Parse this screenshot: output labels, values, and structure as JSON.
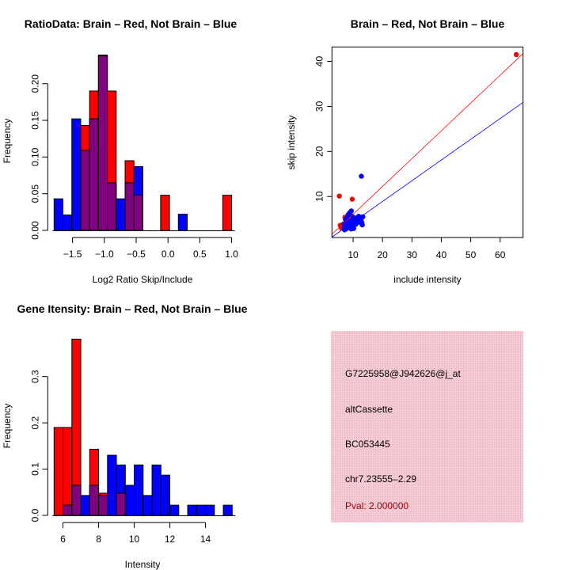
{
  "colors": {
    "brain": "#ff0000",
    "not_brain": "#0000ff",
    "overlap": "#800080",
    "info_bg": "#f2c4cf",
    "pval": "#990000"
  },
  "chart_data": [
    {
      "type": "bar",
      "title": "RatioData: Brain – Red, Not Brain – Blue",
      "xlabel": "Log2 Ratio Skip/Include",
      "ylabel": "Frequency",
      "bin_start": -1.79,
      "bin_width": 0.1395,
      "xticks": [
        -1.5,
        -1.0,
        -0.5,
        0.0,
        0.5,
        1.0
      ],
      "xtick_labels": [
        "−1.5",
        "−1.0",
        "−0.5",
        "0.0",
        "0.5",
        "1.0"
      ],
      "yticks": [
        0,
        0.05,
        0.1,
        0.15,
        0.2
      ],
      "ytick_labels": [
        "0.00",
        "0.05",
        "0.10",
        "0.15",
        "0.20"
      ],
      "series": [
        {
          "name": "Brain",
          "color": "red",
          "values": [
            0,
            0,
            0,
            0.143,
            0.19,
            0.238,
            0.19,
            0,
            0.095,
            0.048,
            0,
            0,
            0.048,
            0,
            0,
            0,
            0,
            0,
            0,
            0.048
          ]
        },
        {
          "name": "Not Brain",
          "color": "blue",
          "values": [
            0.043,
            0.021,
            0.152,
            0.109,
            0.152,
            0.239,
            0.065,
            0.043,
            0.065,
            0.087,
            0,
            0,
            0,
            0,
            0.022,
            0,
            0,
            0,
            0,
            0
          ]
        }
      ]
    },
    {
      "type": "scatter",
      "title": "Brain – Red, Not Brain – Blue",
      "xlabel": "include intensity",
      "ylabel": "skip intensity",
      "xlim": [
        2.8,
        67.8
      ],
      "ylim": [
        0.9,
        43.2
      ],
      "xticks": [
        10,
        20,
        30,
        40,
        50,
        60
      ],
      "yticks": [
        10,
        20,
        30,
        40
      ],
      "lines": [
        {
          "name": "Brain fit",
          "color": "red",
          "slope": 0.617,
          "intercept": -0.1
        },
        {
          "name": "Not Brain fit",
          "color": "blue",
          "slope": 0.46,
          "intercept": -0.3
        }
      ],
      "series": [
        {
          "name": "Brain",
          "color": "red",
          "points": [
            [
              65.5,
              41.5
            ],
            [
              5.3,
              10.1
            ],
            [
              9.7,
              9.4
            ],
            [
              5.6,
              3.6
            ],
            [
              6.0,
              3.0
            ],
            [
              6.4,
              3.3
            ],
            [
              7.8,
              3.4
            ],
            [
              8.2,
              5.0
            ],
            [
              7.2,
              5.4
            ]
          ]
        },
        {
          "name": "Not Brain",
          "color": "blue",
          "points": [
            [
              12.8,
              14.5
            ],
            [
              7,
              3
            ],
            [
              7.3,
              3.6
            ],
            [
              7.5,
              4.2
            ],
            [
              7.8,
              4.8
            ],
            [
              8,
              5.4
            ],
            [
              8.3,
              5.9
            ],
            [
              8.6,
              6.2
            ],
            [
              9,
              6.5
            ],
            [
              9.4,
              6.8
            ],
            [
              7.1,
              2.6
            ],
            [
              7.6,
              2.8
            ],
            [
              8.1,
              3.1
            ],
            [
              8.5,
              3.4
            ],
            [
              8.9,
              3.8
            ],
            [
              9.2,
              4.1
            ],
            [
              9.6,
              4.4
            ],
            [
              9.9,
              3.2
            ],
            [
              10.2,
              2.9
            ],
            [
              10.5,
              3.7
            ],
            [
              10.8,
              4.3
            ],
            [
              11.2,
              4.9
            ],
            [
              11.5,
              5.4
            ],
            [
              11.9,
              5.6
            ],
            [
              12.3,
              5.3
            ],
            [
              12.7,
              4.8
            ],
            [
              13,
              4.2
            ],
            [
              13.1,
              3.7
            ],
            [
              13.3,
              5.5
            ],
            [
              10,
              5
            ],
            [
              9.7,
              5.6
            ],
            [
              8.8,
              4.6
            ],
            [
              11,
              3.9
            ],
            [
              12,
              4.3
            ],
            [
              6.8,
              3.9
            ],
            [
              7.4,
              4.9
            ],
            [
              9.3,
              2.8
            ],
            [
              10.6,
              5.2
            ]
          ]
        }
      ]
    },
    {
      "type": "bar",
      "title": "Gene Itensity: Brain – Red, Not Brain – Blue",
      "xlabel": "Intensity",
      "ylabel": "Frequency",
      "bin_start": 5.5,
      "bin_width": 0.5,
      "xticks": [
        6,
        8,
        10,
        12,
        14
      ],
      "yticks": [
        0,
        0.1,
        0.2,
        0.3
      ],
      "ytick_labels": [
        "0.0",
        "0.1",
        "0.2",
        "0.3"
      ],
      "series": [
        {
          "name": "Brain",
          "color": "red",
          "values": [
            0.19,
            0.19,
            0.381,
            0,
            0.143,
            0.048,
            0,
            0.048,
            0,
            0,
            0,
            0,
            0,
            0,
            0,
            0,
            0,
            0,
            0,
            0
          ]
        },
        {
          "name": "Not Brain",
          "color": "blue",
          "values": [
            0,
            0.022,
            0.065,
            0.043,
            0.065,
            0.043,
            0.13,
            0.109,
            0.065,
            0.109,
            0.043,
            0.109,
            0.087,
            0.022,
            0,
            0.022,
            0.022,
            0.022,
            0,
            0.022
          ]
        }
      ]
    }
  ],
  "info": {
    "probe_id": "G7225958@J942626@j_at",
    "event_type": "altCassette",
    "accession": "BC053445",
    "location": "chr7.23555–2.29",
    "pval": "Pval: 2.000000"
  }
}
